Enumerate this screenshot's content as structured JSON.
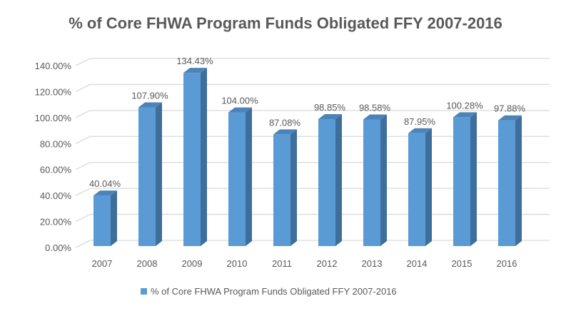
{
  "chart_data": {
    "type": "bar",
    "style": "3d-column",
    "title": "% of Core FHWA Program Funds Obligated FFY 2007-2016",
    "xlabel": "",
    "ylabel": "",
    "categories": [
      "2007",
      "2008",
      "2009",
      "2010",
      "2011",
      "2012",
      "2013",
      "2014",
      "2015",
      "2016"
    ],
    "series": [
      {
        "name": "% of Core FHWA Program Funds Obligated FFY 2007-2016",
        "values": [
          40.04,
          107.9,
          134.43,
          104.0,
          87.08,
          98.85,
          98.58,
          87.95,
          100.28,
          97.88
        ],
        "labels": [
          "40.04%",
          "107.90%",
          "134.43%",
          "104.00%",
          "87.08%",
          "98.85%",
          "98.58%",
          "87.95%",
          "100.28%",
          "97.88%"
        ]
      }
    ],
    "yticks": [
      "0.00%",
      "20.00%",
      "40.00%",
      "60.00%",
      "80.00%",
      "100.00%",
      "120.00%",
      "140.00%"
    ],
    "ylim": [
      0,
      140
    ],
    "grid": true,
    "legend": "bottom",
    "colors": {
      "front": "#5b9bd5",
      "side": "#3e6f9c",
      "top": "#4c84b8",
      "grid": "#d9d9d9",
      "text": "#595959"
    }
  }
}
